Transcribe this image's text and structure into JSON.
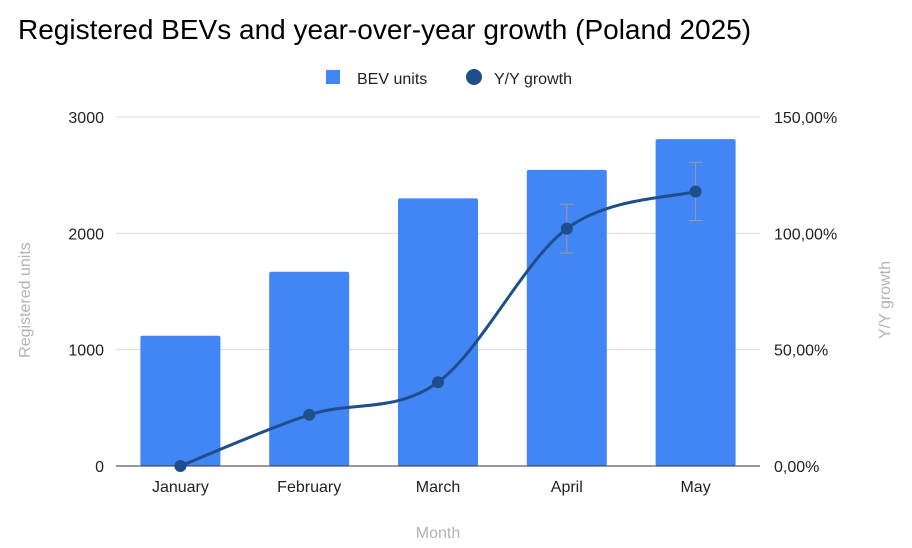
{
  "chart_data": {
    "type": "bar+line",
    "title": "Registered BEVs and year-over-year growth (Poland 2025)",
    "xlabel": "Month",
    "ylabel_left": "Registered units",
    "ylabel_right": "Y/Y growth",
    "categories": [
      "January",
      "February",
      "March",
      "April",
      "May"
    ],
    "left_axis": {
      "ylim": [
        0,
        3000
      ],
      "ticks": [
        "0",
        "1000",
        "2000",
        "3000"
      ]
    },
    "right_axis": {
      "ylim": [
        0,
        150
      ],
      "unit": "%",
      "ticks": [
        "0,00%",
        "50,00%",
        "100,00%",
        "150,00%"
      ]
    },
    "series": [
      {
        "name": "BEV units",
        "type": "bar",
        "axis": "left",
        "color": "#4285f4",
        "values": [
          1120,
          1670,
          2300,
          2545,
          2810
        ]
      },
      {
        "name": "Y/Y growth",
        "type": "line",
        "axis": "right",
        "color": "#1f4e8c",
        "values": [
          0,
          22,
          36,
          102,
          118
        ],
        "error_bars": [
          null,
          null,
          null,
          10.5,
          12.5
        ]
      }
    ],
    "legend": "top-center",
    "grid": true
  }
}
